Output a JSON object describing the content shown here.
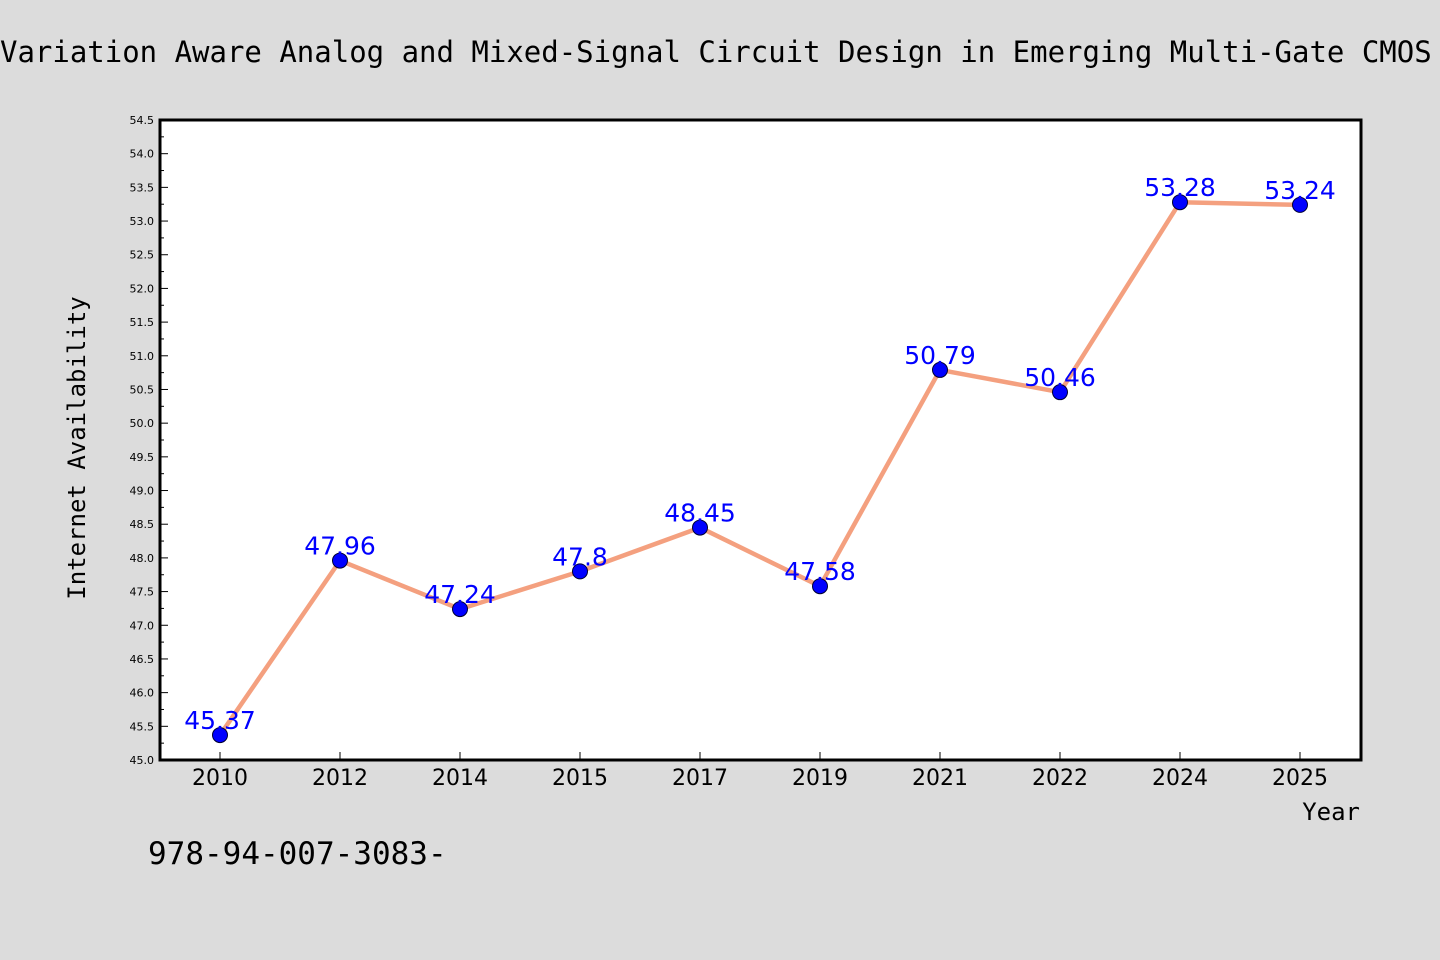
{
  "chart_data": {
    "type": "line",
    "title": "Variation Aware Analog and Mixed-Signal Circuit Design in Emerging Multi-Gate CMOS Technologies",
    "xlabel": "Year",
    "ylabel": "Internet Availability",
    "categories": [
      "2010",
      "2012",
      "2014",
      "2015",
      "2017",
      "2019",
      "2021",
      "2022",
      "2024",
      "2025"
    ],
    "series": [
      {
        "values": [
          45.37,
          47.96,
          47.24,
          47.8,
          48.45,
          47.58,
          50.79,
          50.46,
          53.28,
          53.24
        ],
        "labels": [
          "45.37",
          "47.96",
          "47.24",
          "47.8",
          "48.45",
          "47.58",
          "50.79",
          "50.46",
          "53.28",
          "53.24"
        ],
        "line_color": "#f4a07f",
        "marker_color": "#0000ff"
      }
    ],
    "ylim": [
      45.0,
      54.5
    ],
    "ytick_step": 0.5,
    "ytick_labels": [
      "45.0",
      "45.5",
      "46.0",
      "46.5",
      "47.0",
      "47.5",
      "48.0",
      "48.5",
      "49.0",
      "49.5",
      "50.0",
      "50.5",
      "51.0",
      "51.5",
      "52.0",
      "52.5",
      "53.0",
      "53.5",
      "54.0",
      "54.5"
    ],
    "grid": false,
    "legend": "none",
    "data_label_color": "#0000ff",
    "background_color": "#dcdcdc",
    "plot_background_color": "#ffffff"
  },
  "footer_text": "978-94-007-3083-"
}
